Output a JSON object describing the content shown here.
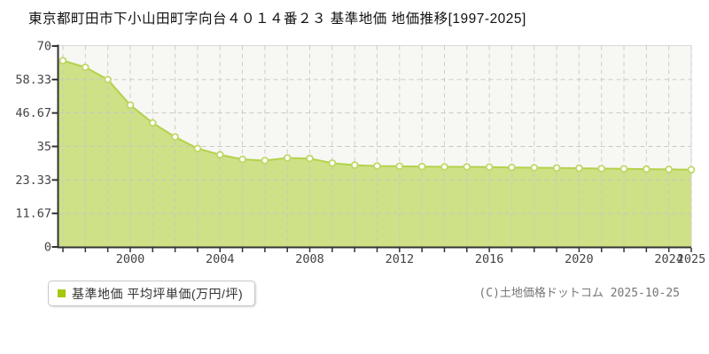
{
  "title": "東京都町田市下小山田町字向台４０１４番２３ 基準地価 地価推移[1997-2025]",
  "legend": {
    "label": "基準地価 平均坪単価(万円/坪)",
    "marker_color": "#a3c90a"
  },
  "copyright": "(C)土地価格ドットコム 2025-10-25",
  "chart_data": {
    "type": "area",
    "title": "東京都町田市下小山田町字向台４０１４番２３ 基準地価 地価推移[1997-2025]",
    "series_name": "基準地価 平均坪単価(万円/坪)",
    "xlabel": "",
    "ylabel": "万円/坪",
    "x": [
      1997,
      1998,
      1999,
      2000,
      2001,
      2002,
      2003,
      2004,
      2005,
      2006,
      2007,
      2008,
      2009,
      2010,
      2011,
      2012,
      2013,
      2014,
      2015,
      2016,
      2017,
      2018,
      2019,
      2020,
      2021,
      2022,
      2023,
      2024,
      2025
    ],
    "values": [
      64.9,
      62.6,
      58.3,
      49.4,
      43.2,
      38.3,
      34.3,
      32.1,
      30.5,
      30.1,
      31.0,
      30.8,
      29.2,
      28.5,
      28.2,
      28.1,
      28.0,
      27.9,
      27.9,
      27.8,
      27.7,
      27.6,
      27.5,
      27.4,
      27.3,
      27.2,
      27.1,
      27.0,
      26.9
    ],
    "xlim": [
      1997,
      2025
    ],
    "ylim": [
      0,
      70
    ],
    "yticks": [
      0,
      11.67,
      23.33,
      35,
      46.67,
      58.33,
      70
    ],
    "ytick_labels": [
      "0",
      "11.67",
      "23.33",
      "35",
      "46.67",
      "58.33",
      "70"
    ],
    "xtick_years": [
      2000,
      2004,
      2008,
      2012,
      2016,
      2020,
      2024,
      2025
    ],
    "xtick_labels": [
      "2000",
      "2004",
      "2008",
      "2012",
      "2016",
      "2020",
      "2024",
      "2025"
    ],
    "grid": true,
    "legend_position": "bottom-left",
    "colors": {
      "fill": "#cee187",
      "line": "#b3d24b",
      "marker_fill": "#ffffff",
      "marker_stroke": "#bfd765",
      "grid": "#c6c6c6",
      "axis": "#333333",
      "plot_bg": "#f7f7f4",
      "plot_border": "#d9d9d9",
      "tick_text": "#444444"
    }
  }
}
